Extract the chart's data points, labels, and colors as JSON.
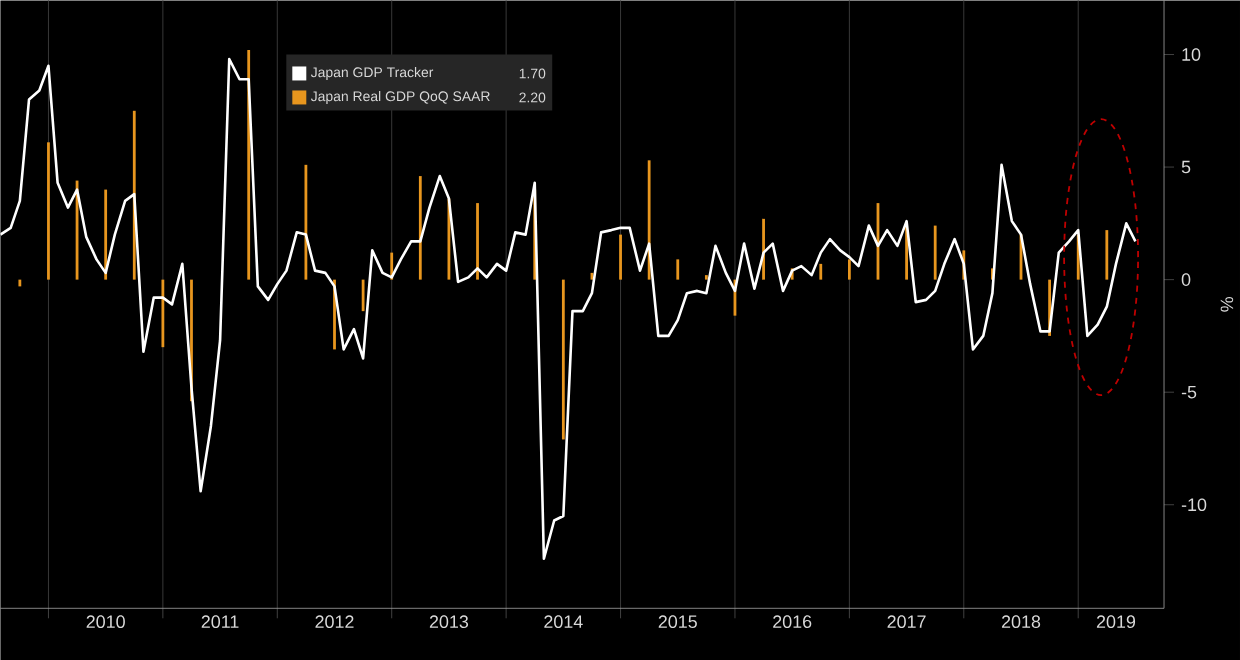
{
  "chart_data": {
    "type": "line",
    "ylabel": "%",
    "x": [
      "2009-08",
      "2009-09",
      "2009-10",
      "2009-11",
      "2009-12",
      "2010-01",
      "2010-02",
      "2010-03",
      "2010-04",
      "2010-05",
      "2010-06",
      "2010-07",
      "2010-08",
      "2010-09",
      "2010-10",
      "2010-11",
      "2010-12",
      "2011-01",
      "2011-02",
      "2011-03",
      "2011-04",
      "2011-05",
      "2011-06",
      "2011-07",
      "2011-08",
      "2011-09",
      "2011-10",
      "2011-11",
      "2011-12",
      "2012-01",
      "2012-02",
      "2012-03",
      "2012-04",
      "2012-05",
      "2012-06",
      "2012-07",
      "2012-08",
      "2012-09",
      "2012-10",
      "2012-11",
      "2012-12",
      "2013-01",
      "2013-02",
      "2013-03",
      "2013-04",
      "2013-05",
      "2013-06",
      "2013-07",
      "2013-08",
      "2013-09",
      "2013-10",
      "2013-11",
      "2013-12",
      "2014-01",
      "2014-02",
      "2014-03",
      "2014-04",
      "2014-05",
      "2014-06",
      "2014-07",
      "2014-08",
      "2014-09",
      "2014-10",
      "2014-11",
      "2014-12",
      "2015-01",
      "2015-02",
      "2015-03",
      "2015-04",
      "2015-05",
      "2015-06",
      "2015-07",
      "2015-08",
      "2015-09",
      "2015-10",
      "2015-11",
      "2015-12",
      "2016-01",
      "2016-02",
      "2016-03",
      "2016-04",
      "2016-05",
      "2016-06",
      "2016-07",
      "2016-08",
      "2016-09",
      "2016-10",
      "2016-11",
      "2016-12",
      "2017-01",
      "2017-02",
      "2017-03",
      "2017-04",
      "2017-05",
      "2017-06",
      "2017-07",
      "2017-08",
      "2017-09",
      "2017-10",
      "2017-11",
      "2017-12",
      "2018-01",
      "2018-02",
      "2018-03",
      "2018-04",
      "2018-05",
      "2018-06",
      "2018-07",
      "2018-08",
      "2018-09",
      "2018-10",
      "2018-11",
      "2018-12",
      "2019-01",
      "2019-02",
      "2019-03",
      "2019-04",
      "2019-05",
      "2019-06",
      "2019-07"
    ],
    "series": [
      {
        "name": "Japan Real GDP QoQ SAAR",
        "type": "bar",
        "color": "#e8961e",
        "x": [
          "2009-10",
          "2010-01",
          "2010-04",
          "2010-07",
          "2010-10",
          "2011-01",
          "2011-04",
          "2011-07",
          "2011-10",
          "2012-01",
          "2012-04",
          "2012-07",
          "2012-10",
          "2013-01",
          "2013-04",
          "2013-07",
          "2013-10",
          "2014-01",
          "2014-04",
          "2014-07",
          "2014-10",
          "2015-01",
          "2015-04",
          "2015-07",
          "2015-10",
          "2016-01",
          "2016-04",
          "2016-07",
          "2016-10",
          "2017-01",
          "2017-04",
          "2017-07",
          "2017-10",
          "2018-01",
          "2018-04",
          "2018-07",
          "2018-10",
          "2019-01",
          "2019-04"
        ],
        "values": [
          -0.3,
          6.1,
          4.4,
          4.0,
          7.5,
          -3.0,
          -5.4,
          null,
          10.2,
          null,
          5.1,
          -3.1,
          -1.4,
          1.2,
          4.6,
          3.6,
          3.4,
          0.0,
          4.0,
          -7.1,
          0.3,
          2.0,
          5.3,
          0.9,
          0.2,
          -1.6,
          2.7,
          0.5,
          0.7,
          0.9,
          3.4,
          2.4,
          2.4,
          1.3,
          0.5,
          2.0,
          -2.5,
          2.0,
          2.2
        ]
      },
      {
        "name": "Japan GDP Tracker",
        "color": "#ffffff",
        "values": [
          2.0,
          2.3,
          3.5,
          8.0,
          8.4,
          9.5,
          4.3,
          3.2,
          4.0,
          1.9,
          0.9,
          0.3,
          2.0,
          3.5,
          3.8,
          -3.2,
          -0.8,
          -0.8,
          -1.1,
          0.7,
          -4.8,
          -9.4,
          -6.5,
          -2.7,
          9.8,
          8.9,
          8.9,
          -0.3,
          -0.9,
          -0.2,
          0.4,
          2.1,
          2.0,
          0.4,
          0.3,
          -0.3,
          -3.1,
          -2.2,
          -3.5,
          1.3,
          0.3,
          0.1,
          0.9,
          1.7,
          1.7,
          3.2,
          4.6,
          3.6,
          -0.1,
          0.1,
          0.5,
          0.1,
          0.7,
          0.4,
          2.1,
          2.0,
          4.3,
          -12.4,
          -10.7,
          -10.5,
          -1.4,
          -1.4,
          -0.6,
          2.1,
          2.2,
          2.3,
          2.3,
          0.4,
          1.6,
          -2.5,
          -2.5,
          -1.8,
          -0.6,
          -0.5,
          -0.6,
          1.5,
          0.3,
          -0.5,
          1.6,
          -0.4,
          1.2,
          1.6,
          -0.5,
          0.4,
          0.6,
          0.2,
          1.2,
          1.8,
          1.3,
          1.0,
          0.6,
          2.4,
          1.5,
          2.2,
          1.5,
          2.6,
          -1.0,
          -0.9,
          -0.5,
          0.7,
          1.8,
          0.7,
          -3.1,
          -2.5,
          -0.6,
          5.1,
          2.6,
          2.0,
          -0.2,
          -2.3,
          -2.3,
          1.2,
          1.7,
          2.2,
          -2.5,
          -2.0,
          -1.2,
          0.7,
          2.5,
          1.7
        ]
      }
    ],
    "annotations": [
      "2.20",
      "1.70"
    ],
    "xlim": [
      "2009-08",
      "2019-10"
    ],
    "ylim": [
      -14.6,
      12.4
    ],
    "yticks": [
      -10,
      -5,
      0,
      5,
      10
    ],
    "xticks": [
      {
        "value": "2010-01",
        "label": null
      },
      {
        "value": "2011-01",
        "label": null
      },
      {
        "value": "2012-01",
        "label": null
      },
      {
        "value": "2013-01",
        "label": null
      },
      {
        "value": "2014-01",
        "label": null
      },
      {
        "value": "2015-01",
        "label": null
      },
      {
        "value": "2016-01",
        "label": null
      },
      {
        "value": "2017-01",
        "label": null
      },
      {
        "value": "2018-01",
        "label": null
      },
      {
        "value": "2019-01",
        "label": null
      },
      {
        "value": "2010-07",
        "label": "2010"
      },
      {
        "value": "2011-07",
        "label": "2011"
      },
      {
        "value": "2012-07",
        "label": "2012"
      },
      {
        "value": "2013-07",
        "label": "2013"
      },
      {
        "value": "2014-07",
        "label": "2014"
      },
      {
        "value": "2015-07",
        "label": "2015"
      },
      {
        "value": "2016-07",
        "label": "2016"
      },
      {
        "value": "2017-07",
        "label": "2017"
      },
      {
        "value": "2018-07",
        "label": "2018"
      },
      {
        "value": "2019-05",
        "label": "2019"
      }
    ],
    "grid": "x",
    "legend": "top left"
  }
}
